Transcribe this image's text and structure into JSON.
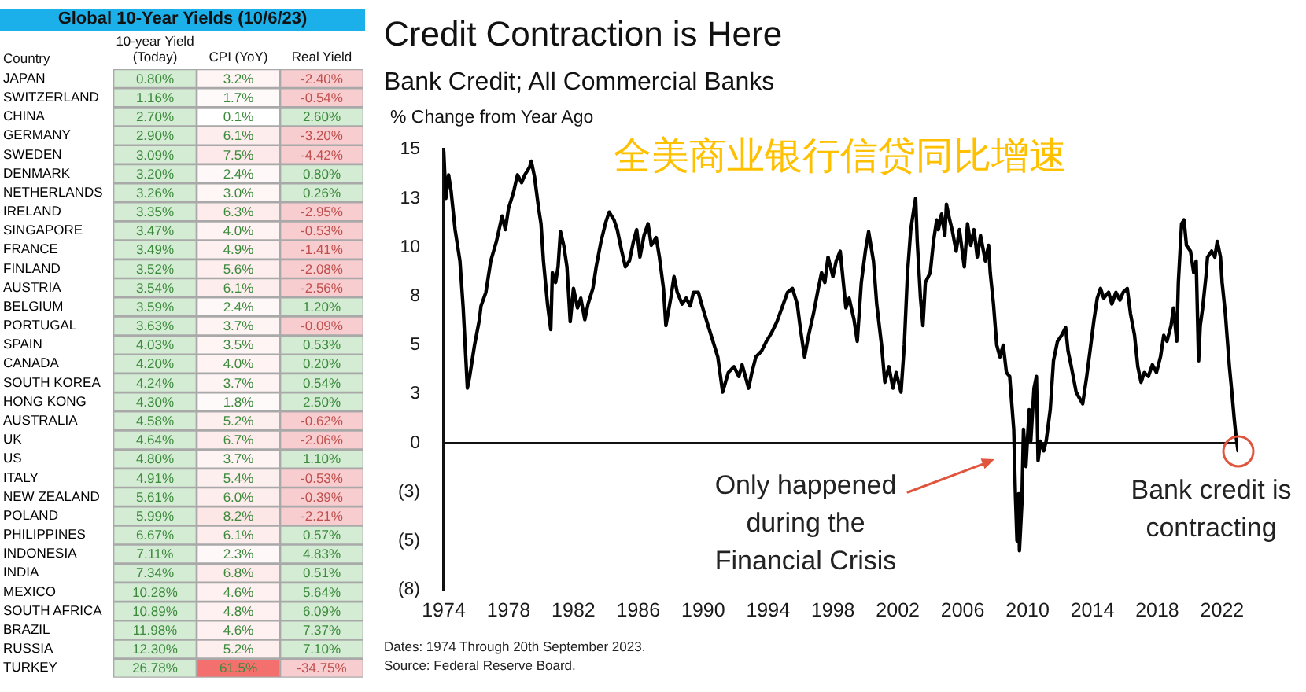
{
  "chart_data": [
    {
      "type": "heatmap",
      "title": "Global 10-Year Yields (10/6/23)",
      "ylabel": "Country",
      "categories": [
        "10-year Yield (Today)",
        "CPI (YoY)",
        "Real Yield"
      ],
      "y_categories": [
        "JAPAN",
        "SWITZERLAND",
        "CHINA",
        "GERMANY",
        "SWEDEN",
        "DENMARK",
        "NETHERLANDS",
        "IRELAND",
        "SINGAPORE",
        "FRANCE",
        "FINLAND",
        "AUSTRIA",
        "BELGIUM",
        "PORTUGAL",
        "SPAIN",
        "CANADA",
        "SOUTH KOREA",
        "HONG KONG",
        "AUSTRALIA",
        "UK",
        "US",
        "ITALY",
        "NEW ZEALAND",
        "POLAND",
        "PHILIPPINES",
        "INDONESIA",
        "INDIA",
        "MEXICO",
        "SOUTH AFRICA",
        "BRAZIL",
        "RUSSIA",
        "TURKEY"
      ],
      "cells": [
        [
          0.8,
          3.2,
          -2.4
        ],
        [
          1.16,
          1.7,
          -0.54
        ],
        [
          2.7,
          0.1,
          2.6
        ],
        [
          2.9,
          6.1,
          -3.2
        ],
        [
          3.09,
          7.5,
          -4.42
        ],
        [
          3.2,
          2.4,
          0.8
        ],
        [
          3.26,
          3.0,
          0.26
        ],
        [
          3.35,
          6.3,
          -2.95
        ],
        [
          3.47,
          4.0,
          -0.53
        ],
        [
          3.49,
          4.9,
          -1.41
        ],
        [
          3.52,
          5.6,
          -2.08
        ],
        [
          3.54,
          6.1,
          -2.56
        ],
        [
          3.59,
          2.4,
          1.2
        ],
        [
          3.63,
          3.7,
          -0.09
        ],
        [
          4.03,
          3.5,
          0.53
        ],
        [
          4.2,
          4.0,
          0.2
        ],
        [
          4.24,
          3.7,
          0.54
        ],
        [
          4.3,
          1.8,
          2.5
        ],
        [
          4.58,
          5.2,
          -0.62
        ],
        [
          4.64,
          6.7,
          -2.06
        ],
        [
          4.8,
          3.7,
          1.1
        ],
        [
          4.91,
          5.4,
          -0.53
        ],
        [
          5.61,
          6.0,
          -0.39
        ],
        [
          5.99,
          8.2,
          -2.21
        ],
        [
          6.67,
          6.1,
          0.57
        ],
        [
          7.11,
          2.3,
          4.83
        ],
        [
          7.34,
          6.8,
          0.51
        ],
        [
          10.28,
          4.6,
          5.64
        ],
        [
          10.89,
          4.8,
          6.09
        ],
        [
          11.98,
          4.6,
          7.37
        ],
        [
          12.3,
          5.2,
          7.1
        ],
        [
          26.78,
          61.5,
          -34.75
        ]
      ],
      "cell_labels": [
        [
          "0.80%",
          "3.2%",
          "-2.40%"
        ],
        [
          "1.16%",
          "1.7%",
          "-0.54%"
        ],
        [
          "2.70%",
          "0.1%",
          "2.60%"
        ],
        [
          "2.90%",
          "6.1%",
          "-3.20%"
        ],
        [
          "3.09%",
          "7.5%",
          "-4.42%"
        ],
        [
          "3.20%",
          "2.4%",
          "0.80%"
        ],
        [
          "3.26%",
          "3.0%",
          "0.26%"
        ],
        [
          "3.35%",
          "6.3%",
          "-2.95%"
        ],
        [
          "3.47%",
          "4.0%",
          "-0.53%"
        ],
        [
          "3.49%",
          "4.9%",
          "-1.41%"
        ],
        [
          "3.52%",
          "5.6%",
          "-2.08%"
        ],
        [
          "3.54%",
          "6.1%",
          "-2.56%"
        ],
        [
          "3.59%",
          "2.4%",
          "1.20%"
        ],
        [
          "3.63%",
          "3.7%",
          "-0.09%"
        ],
        [
          "4.03%",
          "3.5%",
          "0.53%"
        ],
        [
          "4.20%",
          "4.0%",
          "0.20%"
        ],
        [
          "4.24%",
          "3.7%",
          "0.54%"
        ],
        [
          "4.30%",
          "1.8%",
          "2.50%"
        ],
        [
          "4.58%",
          "5.2%",
          "-0.62%"
        ],
        [
          "4.64%",
          "6.7%",
          "-2.06%"
        ],
        [
          "4.80%",
          "3.7%",
          "1.10%"
        ],
        [
          "4.91%",
          "5.4%",
          "-0.53%"
        ],
        [
          "5.61%",
          "6.0%",
          "-0.39%"
        ],
        [
          "5.99%",
          "8.2%",
          "-2.21%"
        ],
        [
          "6.67%",
          "6.1%",
          "0.57%"
        ],
        [
          "7.11%",
          "2.3%",
          "4.83%"
        ],
        [
          "7.34%",
          "6.8%",
          "0.51%"
        ],
        [
          "10.28%",
          "4.6%",
          "5.64%"
        ],
        [
          "10.89%",
          "4.8%",
          "6.09%"
        ],
        [
          "11.98%",
          "4.6%",
          "7.37%"
        ],
        [
          "12.30%",
          "5.2%",
          "7.10%"
        ],
        [
          "26.78%",
          "61.5%",
          "-34.75%"
        ]
      ],
      "colors": [
        [
          "#d3ecd3",
          "#fff5f5",
          "#f8cdd0"
        ],
        [
          "#d3ecd3",
          "#fffafa",
          "#f8cdd0"
        ],
        [
          "#d3ecd3",
          "#ffffff",
          "#d3ecd3"
        ],
        [
          "#d3ecd3",
          "#feeded",
          "#f8cdd0"
        ],
        [
          "#d3ecd3",
          "#fde9e9",
          "#f8cdd0"
        ],
        [
          "#d3ecd3",
          "#fff8f8",
          "#d3ecd3"
        ],
        [
          "#d3ecd3",
          "#fff6f6",
          "#d3ecd3"
        ],
        [
          "#d3ecd3",
          "#feecec",
          "#f8cdd0"
        ],
        [
          "#d3ecd3",
          "#fff3f3",
          "#f8cdd0"
        ],
        [
          "#d3ecd3",
          "#fef0f0",
          "#f8cdd0"
        ],
        [
          "#d3ecd3",
          "#feeeee",
          "#f8cdd0"
        ],
        [
          "#d3ecd3",
          "#feeded",
          "#f8cdd0"
        ],
        [
          "#d3ecd3",
          "#fff8f8",
          "#d3ecd3"
        ],
        [
          "#d3ecd3",
          "#fff4f4",
          "#f8cdd0"
        ],
        [
          "#d3ecd3",
          "#fff5f5",
          "#d3ecd3"
        ],
        [
          "#d3ecd3",
          "#fff3f3",
          "#d3ecd3"
        ],
        [
          "#d3ecd3",
          "#fff4f4",
          "#d3ecd3"
        ],
        [
          "#d3ecd3",
          "#fffafa",
          "#d3ecd3"
        ],
        [
          "#d3ecd3",
          "#feefef",
          "#f8cdd0"
        ],
        [
          "#d3ecd3",
          "#feebeb",
          "#f8cdd0"
        ],
        [
          "#d3ecd3",
          "#fff4f4",
          "#d3ecd3"
        ],
        [
          "#d3ecd3",
          "#feefef",
          "#f8cdd0"
        ],
        [
          "#d3ecd3",
          "#feeded",
          "#f8cdd0"
        ],
        [
          "#d3ecd3",
          "#fde6e6",
          "#f8cdd0"
        ],
        [
          "#d3ecd3",
          "#feeded",
          "#d3ecd3"
        ],
        [
          "#d3ecd3",
          "#fff8f8",
          "#d3ecd3"
        ],
        [
          "#d3ecd3",
          "#feebeb",
          "#d3ecd3"
        ],
        [
          "#d3ecd3",
          "#fff1f1",
          "#d3ecd3"
        ],
        [
          "#d3ecd3",
          "#fff1f1",
          "#d3ecd3"
        ],
        [
          "#d3ecd3",
          "#fff1f1",
          "#d3ecd3"
        ],
        [
          "#d3ecd3",
          "#feefef",
          "#d3ecd3"
        ],
        [
          "#d3ecd3",
          "#f4706f",
          "#f8cdd0"
        ]
      ]
    },
    {
      "type": "line",
      "title": "Credit Contraction is Here",
      "subtitle": "Bank Credit; All Commercial Banks",
      "ylabel": "% Change from Year Ago",
      "color": "#000000",
      "x": [
        1974,
        1974.13,
        1974.3,
        1974.45,
        1974.7,
        1975,
        1975.2,
        1975.46,
        1975.6,
        1975.9,
        1976.2,
        1976.3,
        1976.6,
        1976.9,
        1977.25,
        1977.6,
        1977.8,
        1978,
        1978.3,
        1978.55,
        1978.8,
        1979,
        1979.3,
        1979.4,
        1979.6,
        1979.85,
        1980,
        1980.15,
        1980.4,
        1980.6,
        1980.7,
        1980.9,
        1981.05,
        1981.2,
        1981.4,
        1981.6,
        1981.8,
        1982,
        1982.25,
        1982.45,
        1982.7,
        1982.9,
        1983.2,
        1983.4,
        1983.7,
        1984,
        1984.2,
        1984.5,
        1984.7,
        1984.95,
        1985.2,
        1985.45,
        1985.7,
        1985.9,
        1986.1,
        1986.35,
        1986.6,
        1986.8,
        1987.1,
        1987.3,
        1987.55,
        1987.7,
        1988,
        1988.2,
        1988.4,
        1988.7,
        1988.95,
        1989.2,
        1989.4,
        1989.7,
        1989.9,
        1990.3,
        1990.6,
        1990.9,
        1991.2,
        1991.55,
        1991.9,
        1992.2,
        1992.4,
        1992.8,
        1993,
        1993.25,
        1993.6,
        1993.9,
        1994.2,
        1994.55,
        1994.9,
        1995.2,
        1995.5,
        1995.8,
        1996,
        1996.25,
        1996.5,
        1996.8,
        1997.1,
        1997.3,
        1997.5,
        1997.7,
        1998,
        1998.2,
        1998.45,
        1998.8,
        1999,
        1999.3,
        1999.5,
        1999.75,
        2000,
        2000.2,
        2000.5,
        2000.7,
        2001,
        2001.2,
        2001.45,
        2001.7,
        2001.9,
        2002.2,
        2002.4,
        2002.6,
        2002.8,
        2003,
        2003.1,
        2003.2,
        2003.4,
        2003.55,
        2003.7,
        2004,
        2004.2,
        2004.4,
        2004.5,
        2004.7,
        2004.9,
        2005,
        2005.2,
        2005.35,
        2005.6,
        2005.8,
        2006.1,
        2006.3,
        2006.5,
        2006.7,
        2006.9,
        2007.1,
        2007.4,
        2007.6,
        2007.7,
        2007.9,
        2008.1,
        2008.3,
        2008.5,
        2008.7,
        2008.9,
        2009,
        2009.15,
        2009.25,
        2009.35,
        2009.45,
        2009.5,
        2009.65,
        2009.75,
        2009.9,
        2010.1,
        2010.2,
        2010.4,
        2010.55,
        2010.65,
        2010.8,
        2011,
        2011.15,
        2011.4,
        2011.6,
        2011.85,
        2012.1,
        2012.35,
        2012.5,
        2012.7,
        2013,
        2013.2,
        2013.4,
        2013.65,
        2013.9,
        2014.1,
        2014.3,
        2014.5,
        2014.7,
        2015,
        2015.2,
        2015.45,
        2015.7,
        2015.9,
        2016.15,
        2016.35,
        2016.6,
        2016.8,
        2017,
        2017.2,
        2017.45,
        2017.7,
        2017.95,
        2018.2,
        2018.4,
        2018.6,
        2018.85,
        2019,
        2019.2,
        2019.3,
        2019.5,
        2019.65,
        2019.8,
        2020.05,
        2020.25,
        2020.4,
        2020.55,
        2020.65,
        2020.8,
        2021,
        2021.1,
        2021.35,
        2021.55,
        2021.7,
        2021.9,
        2022,
        2022.2,
        2022.3,
        2022.45,
        2022.6,
        2022.75,
        2022.85,
        2022.98
      ],
      "values": [
        14.9,
        12.5,
        13.7,
        12.9,
        10.9,
        9.3,
        6.9,
        2.8,
        3.4,
        5.0,
        6.3,
        7.0,
        7.7,
        9.3,
        10.3,
        11.6,
        10.9,
        12.0,
        12.8,
        13.7,
        13.3,
        13.7,
        14.1,
        14.4,
        13.6,
        12.0,
        11.2,
        9.3,
        7.1,
        5.8,
        8.7,
        8.2,
        9.0,
        10.8,
        10.1,
        9.0,
        6.2,
        7.9,
        6.9,
        7.4,
        6.3,
        7.1,
        7.9,
        9.0,
        10.3,
        11.3,
        11.8,
        11.4,
        10.9,
        9.9,
        9.0,
        9.3,
        10.3,
        10.9,
        9.5,
        10.6,
        11.2,
        10.1,
        10.5,
        9.5,
        7.9,
        6.0,
        7.4,
        8.5,
        7.7,
        7.1,
        7.4,
        7.0,
        7.7,
        7.7,
        7.1,
        6.0,
        5.2,
        4.4,
        2.6,
        3.6,
        3.9,
        3.4,
        4.0,
        2.8,
        3.6,
        4.4,
        4.7,
        5.2,
        5.6,
        6.2,
        7.0,
        7.7,
        7.9,
        7.1,
        5.8,
        4.4,
        5.5,
        6.6,
        7.9,
        8.7,
        8.2,
        9.5,
        8.5,
        9.3,
        9.8,
        6.9,
        7.4,
        6.3,
        5.2,
        8.2,
        9.8,
        10.8,
        9.3,
        7.1,
        5.0,
        3.1,
        3.9,
        2.8,
        3.6,
        2.6,
        5.0,
        8.7,
        10.9,
        12.0,
        12.5,
        10.3,
        7.4,
        6.0,
        8.2,
        8.7,
        10.3,
        11.4,
        10.9,
        11.7,
        10.6,
        12.2,
        11.4,
        10.9,
        9.8,
        10.9,
        9.0,
        11.2,
        10.1,
        10.9,
        9.5,
        10.6,
        9.3,
        10.1,
        8.7,
        7.1,
        5.0,
        4.4,
        5.0,
        3.6,
        3.4,
        2.3,
        0.7,
        -2.6,
        -5.0,
        -2.6,
        -5.5,
        -3.1,
        0.7,
        -1.2,
        1.7,
        0.1,
        2.8,
        3.4,
        -0.9,
        0.1,
        -0.4,
        0.1,
        1.7,
        4.2,
        5.2,
        5.5,
        5.9,
        4.7,
        3.9,
        2.6,
        2.3,
        2.0,
        3.4,
        5.0,
        6.3,
        7.4,
        7.9,
        7.4,
        7.7,
        7.1,
        7.7,
        7.3,
        7.7,
        7.9,
        6.6,
        5.5,
        3.9,
        3.1,
        3.6,
        3.4,
        4.0,
        3.6,
        4.4,
        5.5,
        5.2,
        6.0,
        6.9,
        5.2,
        8.2,
        11.2,
        11.4,
        10.1,
        9.8,
        8.7,
        9.3,
        4.2,
        6.0,
        6.9,
        8.5,
        9.5,
        9.8,
        9.5,
        10.3,
        9.5,
        8.2,
        6.6,
        5.5,
        3.9,
        2.6,
        1.2,
        0.4,
        -0.4
      ],
      "xlim": [
        1974,
        2023
      ],
      "xticks": [
        1974,
        1978,
        1982,
        1986,
        1990,
        1994,
        1998,
        2002,
        2006,
        2010,
        2014,
        2018,
        2022
      ],
      "ylim": [
        -7.5,
        15
      ],
      "yticks": [
        15,
        {
          "value": 12.5,
          "label": "13"
        },
        10,
        {
          "value": 7.5,
          "label": "8"
        },
        5,
        {
          "value": 2.5,
          "label": "3"
        },
        0,
        {
          "value": -2.5,
          "label": "(3)"
        },
        {
          "value": -5,
          "label": "(5)"
        },
        {
          "value": -7.5,
          "label": "(8)"
        }
      ],
      "annotations": [
        "全美商业银行信贷同比增速",
        "Only happened during the Financial Crisis",
        {
          "text": "Bank credit is contracting",
          "x": 2022.98,
          "y": -0.4
        },
        "Dates: 1974 Through 20th September 2023.",
        "Source: Federal Reserve Board."
      ]
    }
  ]
}
